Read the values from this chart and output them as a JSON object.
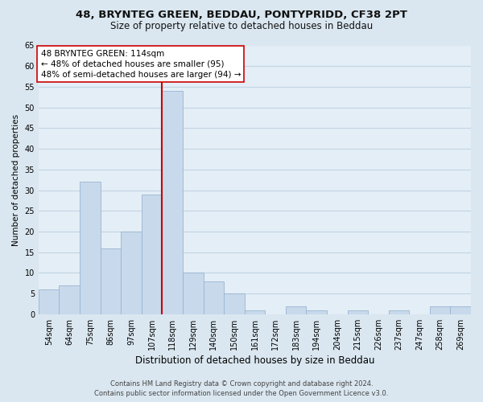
{
  "title_line1": "48, BRYNTEG GREEN, BEDDAU, PONTYPRIDD, CF38 2PT",
  "title_line2": "Size of property relative to detached houses in Beddau",
  "xlabel": "Distribution of detached houses by size in Beddau",
  "ylabel": "Number of detached properties",
  "bin_labels": [
    "54sqm",
    "64sqm",
    "75sqm",
    "86sqm",
    "97sqm",
    "107sqm",
    "118sqm",
    "129sqm",
    "140sqm",
    "150sqm",
    "161sqm",
    "172sqm",
    "183sqm",
    "194sqm",
    "204sqm",
    "215sqm",
    "226sqm",
    "237sqm",
    "247sqm",
    "258sqm",
    "269sqm"
  ],
  "bar_values": [
    6,
    7,
    32,
    16,
    20,
    29,
    54,
    10,
    8,
    5,
    1,
    0,
    2,
    1,
    0,
    1,
    0,
    1,
    0,
    2,
    2
  ],
  "bar_color": "#c8d9ec",
  "bar_edge_color": "#9ab5d0",
  "vline_x_idx": 6,
  "vline_color": "#cc0000",
  "ylim": [
    0,
    65
  ],
  "yticks": [
    0,
    5,
    10,
    15,
    20,
    25,
    30,
    35,
    40,
    45,
    50,
    55,
    60,
    65
  ],
  "annotation_title": "48 BRYNTEG GREEN: 114sqm",
  "annotation_line1": "← 48% of detached houses are smaller (95)",
  "annotation_line2": "48% of semi-detached houses are larger (94) →",
  "annotation_box_facecolor": "#ffffff",
  "annotation_box_edgecolor": "#cc0000",
  "grid_color": "#c0d4e4",
  "figure_facecolor": "#dae7f0",
  "axes_facecolor": "#e4eef6",
  "footer_line1": "Contains HM Land Registry data © Crown copyright and database right 2024.",
  "footer_line2": "Contains public sector information licensed under the Open Government Licence v3.0.",
  "title_fontsize": 9.5,
  "subtitle_fontsize": 8.5,
  "xlabel_fontsize": 8.5,
  "ylabel_fontsize": 7.5,
  "tick_fontsize": 7,
  "annotation_fontsize": 7.5,
  "footer_fontsize": 6
}
